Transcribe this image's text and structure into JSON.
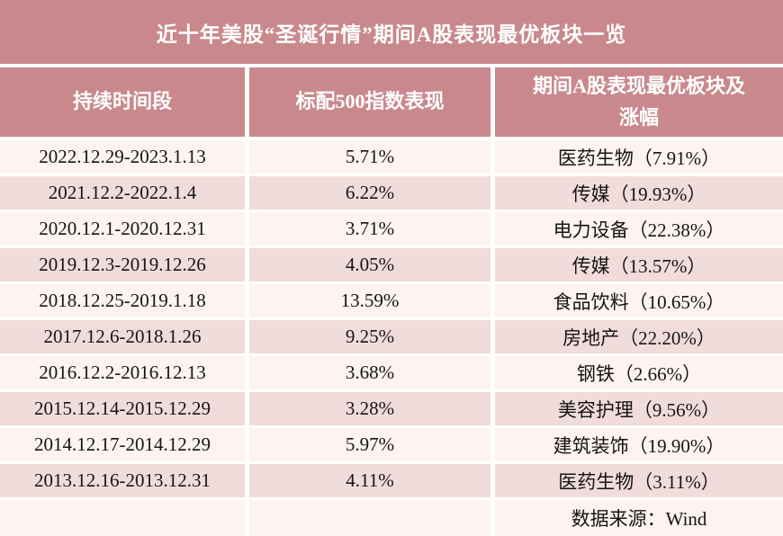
{
  "colors": {
    "band_bg": "#C9898C",
    "row_light": "#FDF3F0",
    "row_shaded": "#F0DCDA",
    "divider": "#FFFFFF",
    "header_text": "#FFFFFF",
    "body_text": "#151515"
  },
  "chart_data": {
    "type": "table",
    "title": "近十年美股“圣诞行情”期间A股表现最优板块一览",
    "columns": [
      "持续时间段",
      "标配500指数表现",
      "期间A股表现最优板块及\n涨幅"
    ],
    "rows": [
      {
        "period": "2022.12.29-2023.1.13",
        "sp500_return": "5.71%",
        "sp500_pct": 5.71,
        "best_sector": "医药生物（7.91%）",
        "sector_name": "医药生物",
        "sector_pct": 7.91
      },
      {
        "period": "2021.12.2-2022.1.4",
        "sp500_return": "6.22%",
        "sp500_pct": 6.22,
        "best_sector": "传媒（19.93%）",
        "sector_name": "传媒",
        "sector_pct": 19.93
      },
      {
        "period": "2020.12.1-2020.12.31",
        "sp500_return": "3.71%",
        "sp500_pct": 3.71,
        "best_sector": "电力设备（22.38%）",
        "sector_name": "电力设备",
        "sector_pct": 22.38
      },
      {
        "period": "2019.12.3-2019.12.26",
        "sp500_return": "4.05%",
        "sp500_pct": 4.05,
        "best_sector": "传媒（13.57%）",
        "sector_name": "传媒",
        "sector_pct": 13.57
      },
      {
        "period": "2018.12.25-2019.1.18",
        "sp500_return": "13.59%",
        "sp500_pct": 13.59,
        "best_sector": "食品饮料（10.65%）",
        "sector_name": "食品饮料",
        "sector_pct": 10.65
      },
      {
        "period": "2017.12.6-2018.1.26",
        "sp500_return": "9.25%",
        "sp500_pct": 9.25,
        "best_sector": "房地产（22.20%）",
        "sector_name": "房地产",
        "sector_pct": 22.2
      },
      {
        "period": "2016.12.2-2016.12.13",
        "sp500_return": "3.68%",
        "sp500_pct": 3.68,
        "best_sector": "钢铁（2.66%）",
        "sector_name": "钢铁",
        "sector_pct": 2.66
      },
      {
        "period": "2015.12.14-2015.12.29",
        "sp500_return": "3.28%",
        "sp500_pct": 3.28,
        "best_sector": "美容护理（9.56%）",
        "sector_name": "美容护理",
        "sector_pct": 9.56
      },
      {
        "period": "2014.12.17-2014.12.29",
        "sp500_return": "5.97%",
        "sp500_pct": 5.97,
        "best_sector": "建筑装饰（19.90%）",
        "sector_name": "建筑装饰",
        "sector_pct": 19.9
      },
      {
        "period": "2013.12.16-2013.12.31",
        "sp500_return": "4.11%",
        "sp500_pct": 4.11,
        "best_sector": "医药生物（3.11%）",
        "sector_name": "医药生物",
        "sector_pct": 3.11
      }
    ],
    "source_note": "数据来源：Wind"
  }
}
